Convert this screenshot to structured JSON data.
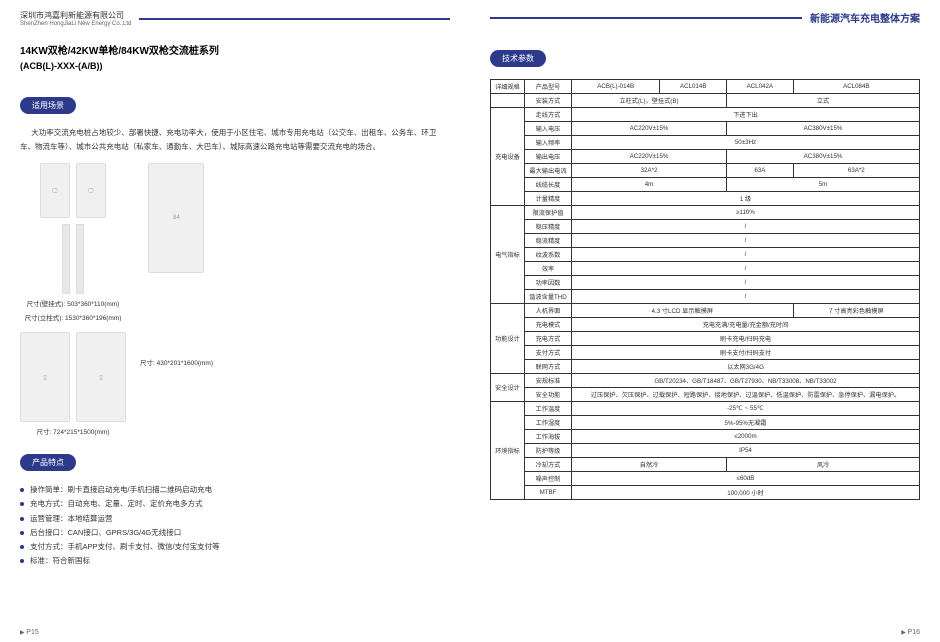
{
  "leftHeader": {
    "company_cn": "深圳市鸿嘉利新能源有限公司",
    "company_en": "ShenZhen HongJiaLi New Energy Co.,Ltd"
  },
  "rightHeader": {
    "title": "新能源汽车充电整体方案"
  },
  "product": {
    "title": "14KW双枪/42KW单枪/84KW双枪交流桩系列",
    "subtitle": "(ACB(L)-XXX-(A/B))"
  },
  "section1": {
    "label": "适用场景",
    "desc": "大功率交流充电桩占地较少、部署快捷、充电功率大，使用于小区住宅、城市专用充电站（公交车、出租车、公务车、环卫车、物流车等）、城市公共充电站（私家车、通勤车、大巴车）、城际高速公路充电站等需要交流充电的场合。"
  },
  "images": {
    "cap1": "尺寸(壁挂式): 503*360*110(mm)",
    "cap1b": "尺寸(立柱式): 1530*360*196(mm)",
    "cap2": "尺寸: 430*201*1600(mm)",
    "cap3": "尺寸: 724*215*1500(mm)"
  },
  "section2": {
    "label": "产品特点"
  },
  "features": [
    "操作简单：刷卡直接启动充电/手机扫描二维码启动充电",
    "充电方式：自动充电、定量、定时、定价充电多方式",
    "运营管理：本地结算运营",
    "后台接口：CAN接口、GPRS/3G/4G无线接口",
    "支付方式：手机APP支付、刷卡支付、微信/支付宝支付等",
    "标准：符合新国标"
  ],
  "section3": {
    "label": "技术参数"
  },
  "spec": {
    "hdr": [
      "详细规格",
      "产品型号",
      "ACB(L)-014B",
      "ACL014B",
      "ACL042A",
      "ACL084B"
    ],
    "rows": [
      {
        "g": null,
        "l": "安装方式",
        "c": [
          {
            "t": "立柱式(L)，壁挂式(B)",
            "s": 2
          },
          {
            "t": "立式",
            "s": 2
          }
        ]
      },
      {
        "g": "充电设备",
        "l": "走线方式",
        "c": [
          {
            "t": "下进下出",
            "s": 4
          }
        ]
      },
      {
        "g": "充电设备",
        "l": "输入电压",
        "c": [
          {
            "t": "AC220V±15%",
            "s": 2
          },
          {
            "t": "AC380V±15%",
            "s": 2
          }
        ]
      },
      {
        "g": "充电设备",
        "l": "输入频率",
        "c": [
          {
            "t": "50±3Hz",
            "s": 4
          }
        ]
      },
      {
        "g": "充电设备",
        "l": "输出电压",
        "c": [
          {
            "t": "AC220V±15%",
            "s": 2
          },
          {
            "t": "AC380V±15%",
            "s": 2
          }
        ]
      },
      {
        "g": "充电设备",
        "l": "最大输出电流",
        "c": [
          {
            "t": "32A*2",
            "s": 2
          },
          {
            "t": "63A",
            "s": 1
          },
          {
            "t": "63A*2",
            "s": 1
          }
        ]
      },
      {
        "g": "充电设备",
        "l": "线缆长度",
        "c": [
          {
            "t": "4m",
            "s": 2
          },
          {
            "t": "5m",
            "s": 2
          }
        ]
      },
      {
        "g": "充电设备",
        "l": "计量精度",
        "c": [
          {
            "t": "1 级",
            "s": 4
          }
        ]
      },
      {
        "g": "电气指标",
        "l": "限流保护值",
        "c": [
          {
            "t": "≥110%",
            "s": 4
          }
        ]
      },
      {
        "g": "电气指标",
        "l": "稳压精度",
        "c": [
          {
            "t": "/",
            "s": 4
          }
        ]
      },
      {
        "g": "电气指标",
        "l": "稳流精度",
        "c": [
          {
            "t": "/",
            "s": 4
          }
        ]
      },
      {
        "g": "电气指标",
        "l": "纹波系数",
        "c": [
          {
            "t": "/",
            "s": 4
          }
        ]
      },
      {
        "g": "电气指标",
        "l": "效率",
        "c": [
          {
            "t": "/",
            "s": 4
          }
        ]
      },
      {
        "g": "电气指标",
        "l": "功率因数",
        "c": [
          {
            "t": "/",
            "s": 4
          }
        ]
      },
      {
        "g": "电气指标",
        "l": "谐波含量THD",
        "c": [
          {
            "t": "/",
            "s": 4
          }
        ]
      },
      {
        "g": "功能设计",
        "l": "人机界面",
        "c": [
          {
            "t": "4.3 寸LCD 显示触摸屏",
            "s": 3
          },
          {
            "t": "7 寸高亮彩色触摸屏",
            "s": 1
          }
        ]
      },
      {
        "g": "功能设计",
        "l": "充电模式",
        "c": [
          {
            "t": "充电充满/充电量/充金额/充时间",
            "s": 4
          }
        ]
      },
      {
        "g": "功能设计",
        "l": "充电方式",
        "c": [
          {
            "t": "刷卡充电/扫码充电",
            "s": 4
          }
        ]
      },
      {
        "g": "功能设计",
        "l": "支付方式",
        "c": [
          {
            "t": "刷卡支付/扫码支付",
            "s": 4
          }
        ]
      },
      {
        "g": "功能设计",
        "l": "联网方式",
        "c": [
          {
            "t": "以太网3G/4G",
            "s": 4
          }
        ]
      },
      {
        "g": "安全设计",
        "l": "安规标准",
        "c": [
          {
            "t": "GB/T20234、GB/T18487、GB/T27930、NB/T33008、NB/T33002",
            "s": 4
          }
        ]
      },
      {
        "g": "安全设计",
        "l": "安全功能",
        "c": [
          {
            "t": "过压保护、欠压保护、过载保护、短路保护、接地保护、过温保护、低温保护、防雷保护、急停保护、漏电保护。",
            "s": 4
          }
        ]
      },
      {
        "g": "环境指标",
        "l": "工作温度",
        "c": [
          {
            "t": "-25℃ ~ 55℃",
            "s": 4
          }
        ]
      },
      {
        "g": "环境指标",
        "l": "工作湿度",
        "c": [
          {
            "t": "5%-95%无凝霜",
            "s": 4
          }
        ]
      },
      {
        "g": "环境指标",
        "l": "工作海拔",
        "c": [
          {
            "t": "≤2000m",
            "s": 4
          }
        ]
      },
      {
        "g": "环境指标",
        "l": "防护等级",
        "c": [
          {
            "t": "IP54",
            "s": 4
          }
        ]
      },
      {
        "g": "环境指标",
        "l": "冷却方式",
        "c": [
          {
            "t": "自然冷",
            "s": 2
          },
          {
            "t": "风冷",
            "s": 2
          }
        ]
      },
      {
        "g": "环境指标",
        "l": "噪声控制",
        "c": [
          {
            "t": "≤60dB",
            "s": 4
          }
        ]
      },
      {
        "g": "环境指标",
        "l": "MTBF",
        "c": [
          {
            "t": "100,000 小时",
            "s": 4
          }
        ]
      }
    ],
    "groups": {
      "充电设备": 7,
      "电气指标": 7,
      "功能设计": 5,
      "安全设计": 2,
      "环境指标": 7
    }
  },
  "pagenums": {
    "left": "P15",
    "right": "P16"
  }
}
